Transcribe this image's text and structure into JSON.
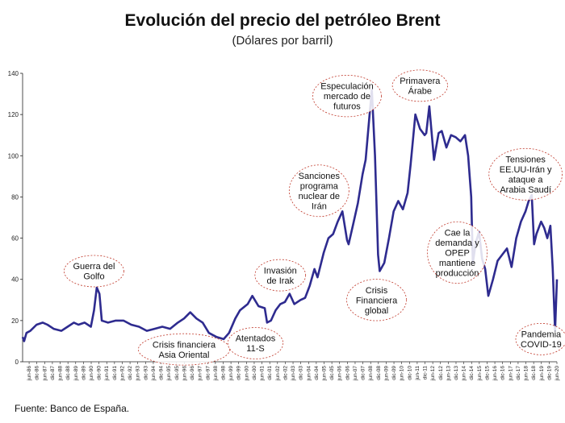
{
  "chart_data": {
    "type": "line",
    "title": "Evolución del precio del petróleo Brent",
    "subtitle": "(Dólares por barril)",
    "ylim": [
      0,
      140
    ],
    "yticks": [
      0,
      20,
      40,
      60,
      80,
      100,
      120,
      140
    ],
    "xlim": [
      1986.0,
      2020.42
    ],
    "series": [
      {
        "name": "Brent",
        "color": "#2e2b8f",
        "x": [
          1986.0,
          1986.1,
          1986.25,
          1986.5,
          1986.9,
          1987.3,
          1987.6,
          1988.0,
          1988.5,
          1988.9,
          1989.3,
          1989.6,
          1990.0,
          1990.4,
          1990.6,
          1990.78,
          1990.95,
          1991.1,
          1991.5,
          1992.0,
          1992.5,
          1993.0,
          1993.5,
          1994.0,
          1994.5,
          1995.0,
          1995.5,
          1996.0,
          1996.4,
          1996.8,
          1997.2,
          1997.6,
          1998.0,
          1998.5,
          1998.95,
          1999.3,
          1999.7,
          2000.0,
          2000.5,
          2000.8,
          2001.2,
          2001.6,
          2001.75,
          2002.0,
          2002.3,
          2002.6,
          2002.9,
          2003.2,
          2003.5,
          2003.9,
          2004.2,
          2004.5,
          2004.8,
          2005.0,
          2005.4,
          2005.7,
          2006.0,
          2006.3,
          2006.6,
          2006.9,
          2007.0,
          2007.3,
          2007.6,
          2007.9,
          2008.1,
          2008.35,
          2008.5,
          2008.7,
          2008.9,
          2009.0,
          2009.3,
          2009.6,
          2009.9,
          2010.2,
          2010.5,
          2010.8,
          2011.0,
          2011.3,
          2011.6,
          2011.9,
          2012.0,
          2012.2,
          2012.5,
          2012.8,
          2013.0,
          2013.3,
          2013.6,
          2013.9,
          2014.2,
          2014.5,
          2014.7,
          2014.9,
          2015.0,
          2015.2,
          2015.4,
          2015.6,
          2015.8,
          2016.0,
          2016.3,
          2016.6,
          2016.9,
          2017.2,
          2017.5,
          2017.8,
          2018.1,
          2018.4,
          2018.6,
          2018.8,
          2018.95,
          2019.1,
          2019.4,
          2019.6,
          2019.8,
          2020.0,
          2020.15,
          2020.3,
          2020.42
        ],
        "values": [
          12,
          10,
          14,
          15,
          18,
          19,
          18,
          16,
          15,
          17,
          19,
          18,
          19,
          17,
          25,
          36,
          33,
          20,
          19,
          20,
          20,
          18,
          17,
          15,
          16,
          17,
          16,
          19,
          21,
          24,
          21,
          19,
          14,
          12,
          11,
          14,
          21,
          25,
          28,
          32,
          27,
          26,
          19,
          20,
          25,
          28,
          29,
          33,
          28,
          30,
          31,
          37,
          45,
          41,
          53,
          60,
          62,
          68,
          73,
          59,
          57,
          67,
          77,
          91,
          98,
          120,
          132,
          100,
          52,
          44,
          48,
          60,
          73,
          78,
          74,
          82,
          96,
          120,
          113,
          110,
          111,
          124,
          98,
          111,
          112,
          104,
          110,
          109,
          107,
          110,
          100,
          80,
          48,
          58,
          63,
          50,
          45,
          32,
          40,
          49,
          52,
          55,
          46,
          60,
          68,
          73,
          78,
          81,
          57,
          62,
          68,
          65,
          60,
          66,
          45,
          15,
          40
        ]
      }
    ],
    "xticklabels": [
      "jun-86",
      "dic-86",
      "jun-87",
      "dic-87",
      "jun-88",
      "dic-88",
      "jun-89",
      "dic-89",
      "jun-90",
      "dic-90",
      "jun-91",
      "dic-91",
      "jun-92",
      "dic-92",
      "jun-93",
      "dic-93",
      "jun-94",
      "dic-94",
      "jun-95",
      "dic-95",
      "jun-96",
      "dic-96",
      "jun-97",
      "dic-97",
      "jun-98",
      "dic-98",
      "jun-99",
      "dic-99",
      "jun-00",
      "dic-00",
      "jun-01",
      "dic-01",
      "jun-02",
      "dic-02",
      "jun-03",
      "dic-03",
      "jun-04",
      "dic-04",
      "jun-05",
      "dic-05",
      "jun-06",
      "dic-06",
      "jun-07",
      "dic-07",
      "jun-08",
      "dic-08",
      "jun-09",
      "dic-09",
      "jun-10",
      "dic-10",
      "jun-11",
      "dic-11",
      "jun-12",
      "dic-12",
      "jun-13",
      "dic-13",
      "jun-14",
      "dic-14",
      "jun-15",
      "dic-15",
      "jun-16",
      "dic-16",
      "jun-17",
      "dic-17",
      "jun-18",
      "dic-18",
      "jun-19",
      "dic-19",
      "jun-20"
    ],
    "annotations": [
      {
        "lines": [
          "Guerra del",
          "Golfo"
        ],
        "x": 1990.6,
        "y": 44
      },
      {
        "lines": [
          "Crisis financiera",
          "Asia Oriental"
        ],
        "x": 1996.4,
        "y": 6
      },
      {
        "lines": [
          "Atentados",
          "11-S"
        ],
        "x": 2001.0,
        "y": 9
      },
      {
        "lines": [
          "Invasión",
          "de Irak"
        ],
        "x": 2002.6,
        "y": 42
      },
      {
        "lines": [
          "Sanciones",
          "programa",
          "nuclear de",
          "Irán"
        ],
        "x": 2005.1,
        "y": 83
      },
      {
        "lines": [
          "Especulación",
          "mercado de",
          "futuros"
        ],
        "x": 2006.9,
        "y": 129
      },
      {
        "lines": [
          "Crisis",
          "Financiera",
          "global"
        ],
        "x": 2008.8,
        "y": 30
      },
      {
        "lines": [
          "Primavera",
          "Árabe"
        ],
        "x": 2011.6,
        "y": 134
      },
      {
        "lines": [
          "Cae la",
          "demanda y",
          "OPEP",
          "mantiene",
          "producción"
        ],
        "x": 2014.0,
        "y": 53
      },
      {
        "lines": [
          "Tensiones",
          "EE.UU-Irán  y",
          "ataque a",
          "Arabia Saudí"
        ],
        "x": 2018.4,
        "y": 91
      },
      {
        "lines": [
          "Pandemia",
          "COVID-19"
        ],
        "x": 2019.4,
        "y": 11
      }
    ]
  },
  "source": "Fuente:  Banco de España."
}
